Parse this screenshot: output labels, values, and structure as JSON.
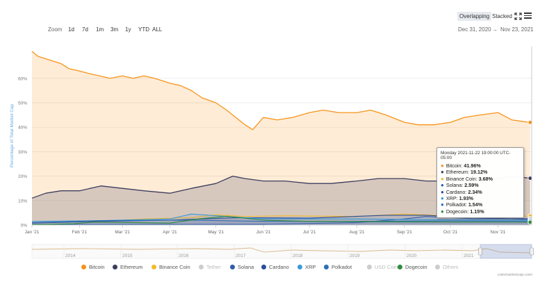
{
  "toolbar": {
    "overlapping_label": "Overlapping",
    "stacked_label": "Stacked",
    "zoom_label": "Zoom",
    "zoom_buttons": [
      "1d",
      "7d",
      "1m",
      "3m",
      "1y",
      "YTD",
      "ALL"
    ],
    "date_from": "Dec 31, 2020",
    "date_arrow": "→",
    "date_to": "Nov 23, 2021",
    "menu_icon": "hamburger-menu-icon",
    "fullscreen_icon": "fullscreen-expand-icon"
  },
  "tooltip": {
    "title": "Monday 2021-11-22 19:00:00 UTC-05:00",
    "rows": [
      {
        "name": "Bitcoin:",
        "value": "41.96%",
        "color": "#f7931a"
      },
      {
        "name": "Ethereum:",
        "value": "19.12%",
        "color": "#3c3c5d"
      },
      {
        "name": "Binance Coin:",
        "value": "3.68%",
        "color": "#f3ba2f"
      },
      {
        "name": "Solana:",
        "value": "2.59%",
        "color": "#2f5ba8"
      },
      {
        "name": "Cardano:",
        "value": "2.34%",
        "color": "#2a4e96"
      },
      {
        "name": "XRP:",
        "value": "1.93%",
        "color": "#3a9ad9"
      },
      {
        "name": "Polkadot:",
        "value": "1.54%",
        "color": "#2c6fb5"
      },
      {
        "name": "Dogecoin:",
        "value": "1.15%",
        "color": "#2e8b3e"
      }
    ]
  },
  "legend": [
    {
      "name": "Bitcoin",
      "color": "#f7931a",
      "active": true
    },
    {
      "name": "Ethereum",
      "color": "#3c3c5d",
      "active": true
    },
    {
      "name": "Binance Coin",
      "color": "#f3ba2f",
      "active": true
    },
    {
      "name": "Tether",
      "color": "#cccccc",
      "active": false
    },
    {
      "name": "Solana",
      "color": "#2f5ba8",
      "active": true
    },
    {
      "name": "Cardano",
      "color": "#2a4e96",
      "active": true
    },
    {
      "name": "XRP",
      "color": "#3a9ad9",
      "active": true
    },
    {
      "name": "Polkadot",
      "color": "#2c6fb5",
      "active": true
    },
    {
      "name": "USD Coin",
      "color": "#cccccc",
      "active": false
    },
    {
      "name": "Dogecoin",
      "color": "#2e8b3e",
      "active": true
    },
    {
      "name": "Others",
      "color": "#cccccc",
      "active": false
    }
  ],
  "credit": "coinmarketcap.com",
  "navigator": {
    "years": [
      "2014",
      "2015",
      "2016",
      "2017",
      "2018",
      "2019",
      "2020",
      "2021"
    ]
  },
  "chart_data": {
    "type": "area",
    "ylabel": "Percentage of Total Market Cap",
    "ylim": [
      0,
      73
    ],
    "yticks": [
      0,
      10,
      20,
      30,
      40,
      50,
      60
    ],
    "ytick_labels": [
      "0%",
      "10%",
      "20%",
      "30%",
      "40%",
      "50%",
      "60%"
    ],
    "xlim": [
      "2021-01-01",
      "2021-11-23"
    ],
    "xticks": [
      "2021-01-01",
      "2021-02-01",
      "2021-03-01",
      "2021-04-01",
      "2021-05-01",
      "2021-06-01",
      "2021-07-01",
      "2021-08-01",
      "2021-09-01",
      "2021-10-01",
      "2021-11-01"
    ],
    "xtick_labels": [
      "Jan '21",
      "Feb '21",
      "Mar '21",
      "Apr '21",
      "May '21",
      "Jun '21",
      "Jul '21",
      "Aug '21",
      "Sep '21",
      "Oct '21",
      "Nov '21"
    ],
    "grid": true,
    "series": [
      {
        "name": "Bitcoin",
        "color": "#f7931a",
        "x": [
          "2021-01-01",
          "2021-01-05",
          "2021-01-10",
          "2021-01-15",
          "2021-01-20",
          "2021-01-25",
          "2021-02-01",
          "2021-02-07",
          "2021-02-14",
          "2021-02-21",
          "2021-03-01",
          "2021-03-08",
          "2021-03-15",
          "2021-03-22",
          "2021-04-01",
          "2021-04-08",
          "2021-04-15",
          "2021-04-22",
          "2021-05-01",
          "2021-05-08",
          "2021-05-12",
          "2021-05-16",
          "2021-05-20",
          "2021-05-25",
          "2021-06-01",
          "2021-06-10",
          "2021-06-20",
          "2021-07-01",
          "2021-07-10",
          "2021-07-20",
          "2021-08-01",
          "2021-08-10",
          "2021-08-20",
          "2021-09-01",
          "2021-09-10",
          "2021-09-20",
          "2021-10-01",
          "2021-10-10",
          "2021-10-20",
          "2021-11-01",
          "2021-11-10",
          "2021-11-22"
        ],
        "values": [
          71,
          69,
          68,
          67,
          66,
          64,
          63,
          62,
          61,
          60,
          61,
          60,
          61,
          60,
          58,
          57,
          55,
          52,
          50,
          47,
          45,
          43,
          41,
          39,
          44,
          43,
          44,
          46,
          47,
          46,
          46,
          47,
          45,
          42,
          41,
          41,
          42,
          44,
          45,
          46,
          43,
          41.96
        ]
      },
      {
        "name": "Ethereum",
        "color": "#3c3c5d",
        "x": [
          "2021-01-01",
          "2021-01-10",
          "2021-01-20",
          "2021-02-01",
          "2021-02-15",
          "2021-03-01",
          "2021-03-15",
          "2021-04-01",
          "2021-04-15",
          "2021-05-01",
          "2021-05-12",
          "2021-05-20",
          "2021-06-01",
          "2021-06-15",
          "2021-07-01",
          "2021-07-15",
          "2021-08-01",
          "2021-08-15",
          "2021-09-01",
          "2021-09-15",
          "2021-10-01",
          "2021-10-15",
          "2021-11-01",
          "2021-11-10",
          "2021-11-22"
        ],
        "values": [
          11,
          13,
          14,
          14,
          16,
          15,
          14,
          13,
          15,
          17,
          20,
          19,
          18,
          18,
          17,
          17,
          18,
          19,
          19,
          18,
          18,
          18,
          19,
          20,
          19.12
        ]
      },
      {
        "name": "Binance Coin",
        "color": "#f3ba2f",
        "x": [
          "2021-01-01",
          "2021-02-15",
          "2021-03-15",
          "2021-04-15",
          "2021-05-01",
          "2021-05-20",
          "2021-06-15",
          "2021-08-01",
          "2021-09-01",
          "2021-10-01",
          "2021-11-01",
          "2021-11-22"
        ],
        "values": [
          1,
          1.5,
          2.5,
          3,
          4.2,
          3.5,
          3.8,
          3.5,
          4.5,
          3.8,
          3.6,
          3.68
        ]
      },
      {
        "name": "Solana",
        "color": "#2f5ba8",
        "x": [
          "2021-01-01",
          "2021-06-01",
          "2021-08-01",
          "2021-09-01",
          "2021-09-15",
          "2021-10-15",
          "2021-11-22"
        ],
        "values": [
          0.2,
          0.3,
          1,
          2.5,
          3.5,
          2.6,
          2.59
        ]
      },
      {
        "name": "Cardano",
        "color": "#2a4e96",
        "x": [
          "2021-01-01",
          "2021-02-15",
          "2021-04-01",
          "2021-05-15",
          "2021-07-01",
          "2021-08-20",
          "2021-09-15",
          "2021-10-15",
          "2021-11-22"
        ],
        "values": [
          0.8,
          1.5,
          2,
          3,
          2.8,
          4,
          4,
          3,
          2.34
        ]
      },
      {
        "name": "XRP",
        "color": "#3a9ad9",
        "x": [
          "2021-01-01",
          "2021-02-15",
          "2021-04-01",
          "2021-04-15",
          "2021-06-01",
          "2021-08-01",
          "2021-09-15",
          "2021-11-22"
        ],
        "values": [
          1.5,
          1.8,
          2.5,
          4.5,
          2.5,
          2.5,
          2.2,
          1.93
        ]
      },
      {
        "name": "Polkadot",
        "color": "#2c6fb5",
        "x": [
          "2021-01-01",
          "2021-02-15",
          "2021-04-15",
          "2021-06-01",
          "2021-08-01",
          "2021-10-01",
          "2021-11-22"
        ],
        "values": [
          1,
          1.8,
          2,
          1.5,
          1.5,
          1.7,
          1.54
        ]
      },
      {
        "name": "Dogecoin",
        "color": "#2e8b3e",
        "x": [
          "2021-01-01",
          "2021-01-28",
          "2021-02-10",
          "2021-04-01",
          "2021-04-20",
          "2021-05-08",
          "2021-06-01",
          "2021-07-01",
          "2021-09-01",
          "2021-11-22"
        ],
        "values": [
          0.1,
          0.5,
          1.2,
          0.8,
          2.5,
          3.6,
          2,
          1.5,
          1.3,
          1.15
        ]
      }
    ]
  }
}
